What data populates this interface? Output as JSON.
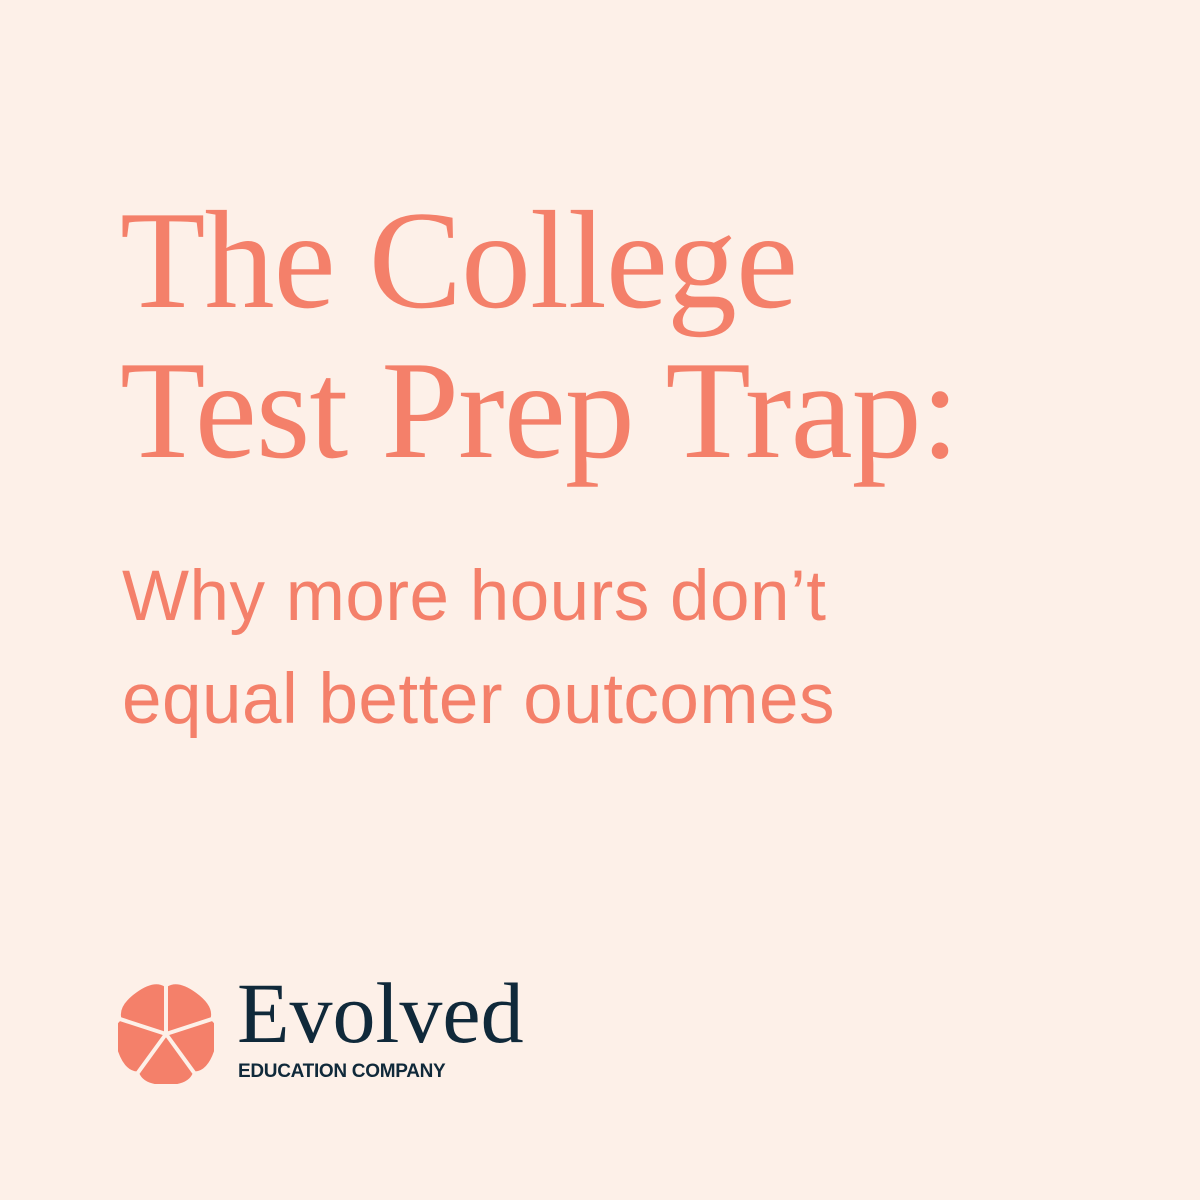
{
  "title": {
    "lines": [
      "The College",
      "Test Prep Trap:"
    ]
  },
  "subtitle": {
    "lines": [
      "Why more hours don’t",
      "equal better outcomes"
    ]
  },
  "logo": {
    "icon": "flower-icon",
    "name": "Evolved",
    "tagline": "EDUCATION COMPANY"
  },
  "colors": {
    "background": "#fdf0e8",
    "accent": "#f4806a",
    "navy": "#10293a"
  }
}
